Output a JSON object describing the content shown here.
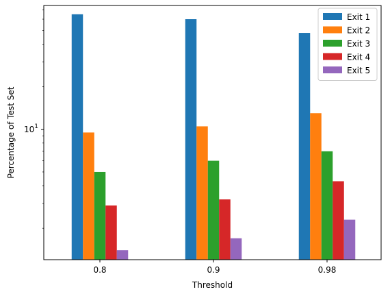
{
  "chart_data": {
    "type": "bar",
    "title": "",
    "xlabel": "Threshold",
    "ylabel": "Percentage of Test Set",
    "yscale": "log",
    "ylim": [
      1.2,
      75
    ],
    "categories": [
      "0.8",
      "0.9",
      "0.98"
    ],
    "series": [
      {
        "name": "Exit 1",
        "color": "#1f77b4",
        "values": [
          65.0,
          60.0,
          48.0
        ]
      },
      {
        "name": "Exit 2",
        "color": "#ff7f0e",
        "values": [
          9.5,
          10.5,
          13.0
        ]
      },
      {
        "name": "Exit 3",
        "color": "#2ca02c",
        "values": [
          5.0,
          6.0,
          7.0
        ]
      },
      {
        "name": "Exit 4",
        "color": "#d62728",
        "values": [
          2.9,
          3.2,
          4.3
        ]
      },
      {
        "name": "Exit 5",
        "color": "#9467bd",
        "values": [
          1.4,
          1.7,
          2.3
        ]
      }
    ],
    "yticks": [
      {
        "value": 10,
        "base": "10",
        "exp": "1"
      }
    ],
    "legend": "top-right",
    "grid": false
  }
}
